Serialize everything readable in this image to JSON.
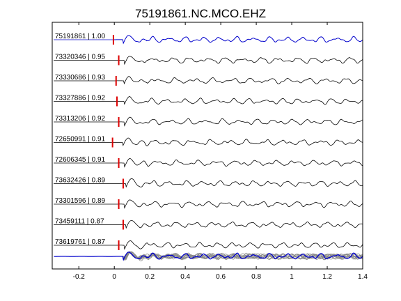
{
  "chart_data": {
    "type": "line",
    "title": "75191861.NC.MCO.EHZ",
    "xlabel": "",
    "ylabel": "",
    "xlim": [
      -0.35,
      1.4
    ],
    "xticks": [
      -0.2,
      0,
      0.2,
      0.4,
      0.6,
      0.8,
      1,
      1.2,
      1.4
    ],
    "xtick_labels": [
      "-0.2",
      "0",
      "0.2",
      "0.4",
      "0.6",
      "0.8",
      "1",
      "1.2",
      "1.4"
    ],
    "grid": false,
    "legend": "none",
    "colors": {
      "reference": "#0000cc",
      "trace": "#000000",
      "marker": "#dd0000",
      "stack": "#888888"
    },
    "traces": [
      {
        "label": "75191861 | 1.00",
        "id": "75191861",
        "cc": 1.0,
        "pick": -0.005,
        "reference": true
      },
      {
        "label": "73320346 | 0.95",
        "id": "73320346",
        "cc": 0.95,
        "pick": 0.025
      },
      {
        "label": "73330686 | 0.93",
        "id": "73330686",
        "cc": 0.93,
        "pick": 0.01
      },
      {
        "label": "73327886 | 0.92",
        "id": "73327886",
        "cc": 0.92,
        "pick": 0.015
      },
      {
        "label": "73313206 | 0.92",
        "id": "73313206",
        "cc": 0.92,
        "pick": 0.025
      },
      {
        "label": "72650991 | 0.91",
        "id": "72650991",
        "cc": 0.91,
        "pick": -0.01
      },
      {
        "label": "72606345 | 0.91",
        "id": "72606345",
        "cc": 0.91,
        "pick": 0.025
      },
      {
        "label": "73632426 | 0.89",
        "id": "73632426",
        "cc": 0.89,
        "pick": 0.05
      },
      {
        "label": "73301596 | 0.89",
        "id": "73301596",
        "cc": 0.89,
        "pick": 0.025
      },
      {
        "label": "73459111 | 0.87",
        "id": "73459111",
        "cc": 0.87,
        "pick": 0.05
      },
      {
        "label": "73619761 | 0.87",
        "id": "73619761",
        "cc": 0.87,
        "pick": 0.025
      }
    ],
    "stack": {
      "overlay_count": 11
    }
  }
}
